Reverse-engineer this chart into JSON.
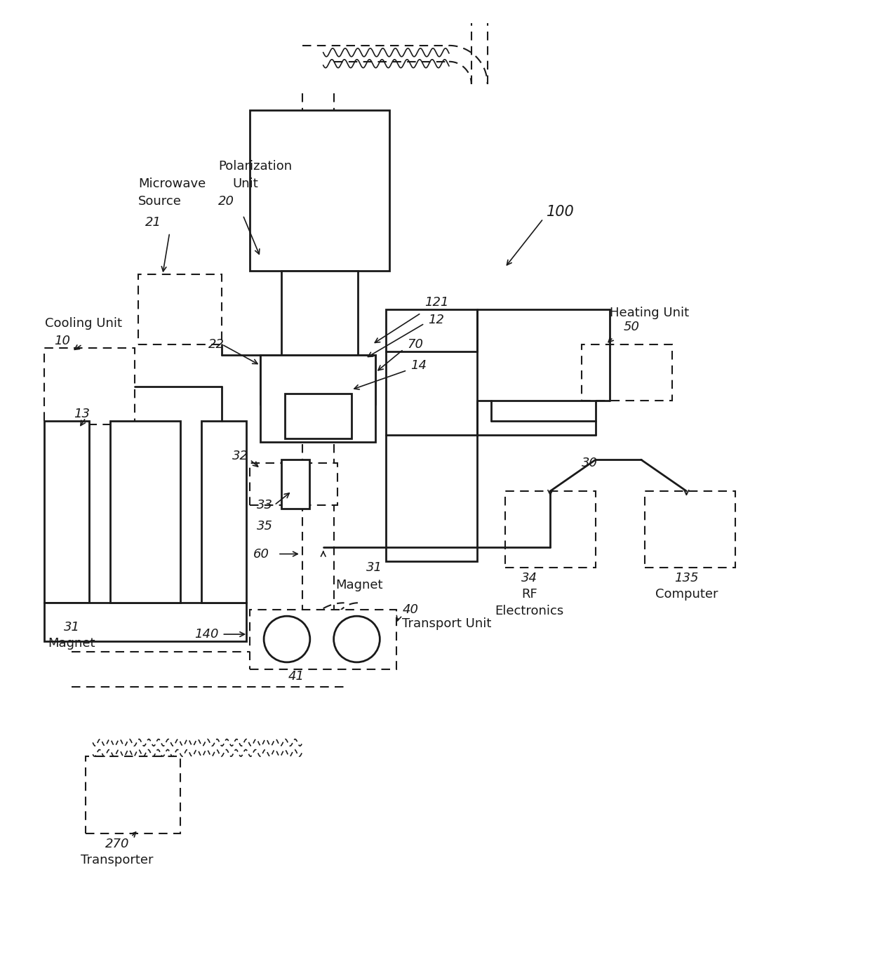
{
  "bg_color": "#ffffff",
  "lc": "#1a1a1a",
  "fig_width": 12.4,
  "fig_height": 13.94,
  "dpi": 100,
  "xlim": [
    0,
    1240
  ],
  "ylim": [
    0,
    1394
  ],
  "lw_solid": 2.0,
  "lw_dashed": 1.5,
  "lw_arrow": 1.2,
  "fs_label": 13,
  "fs_number": 13
}
